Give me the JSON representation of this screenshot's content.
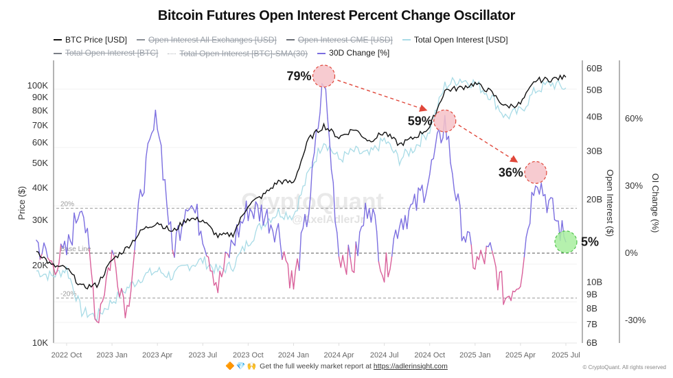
{
  "title": "Bitcoin Futures Open Interest Percent Change Oscillator",
  "legend": [
    {
      "label": "BTC Price [USD]",
      "color": "#111111",
      "active": true,
      "style": "solid"
    },
    {
      "label": "Open Interest All Exchanges [USD]",
      "color": "#8a8f96",
      "active": false,
      "style": "solid"
    },
    {
      "label": "Open Interest CME [USD]",
      "color": "#6a6f76",
      "active": false,
      "style": "solid"
    },
    {
      "label": "Total Open Interest [USD]",
      "color": "#a8dbe6",
      "active": true,
      "style": "solid"
    },
    {
      "label": "Total Open Interest [BTC]",
      "color": "#7a7f86",
      "active": false,
      "style": "solid"
    },
    {
      "label": "Total Open Interest [BTC]-SMA(30)",
      "color": "#b0b4ba",
      "active": false,
      "style": "dotted"
    },
    {
      "label": "30D Change [%]",
      "color": "#7b6ee0",
      "active": true,
      "style": "solid"
    }
  ],
  "footer": {
    "emojis": [
      "🔶",
      "💎",
      "🙌"
    ],
    "text": "Get the full weekly market report at",
    "link": "https://adlerinsight.com",
    "copyright": "© CryptoQuant. All rights reserved"
  },
  "watermark": {
    "main": "CryptoQuant",
    "sub": "@AxelAdlerJr"
  },
  "colors": {
    "price": "#111111",
    "oi_usd": "#a8dbe6",
    "change_pos": "#7b6ee0",
    "change_neg": "#d9609a",
    "annotation_red_fill": "#f6c2c8",
    "annotation_red_stroke": "#e0473a",
    "annotation_green_fill": "#a8ef9f",
    "annotation_green_stroke": "#4fc24a",
    "arrow": "#e0473a"
  },
  "chart_data": {
    "type": "line",
    "title": "Bitcoin Futures Open Interest Percent Change Oscillator",
    "x_ticks": [
      "2022 Oct",
      "2023 Jan",
      "2023 Apr",
      "2023 Jul",
      "2023 Oct",
      "2024 Jan",
      "2024 Apr",
      "2024 Jul",
      "2024 Oct",
      "2025 Jan",
      "2025 Apr",
      "2025 Jul"
    ],
    "x_range": [
      "2022-08",
      "2025-07"
    ],
    "axes": {
      "price": {
        "label": "Price ($)",
        "scale": "log",
        "range": [
          10000,
          130000
        ],
        "ticks": [
          "10K",
          "20K",
          "30K",
          "40K",
          "50K",
          "60K",
          "70K",
          "80K",
          "90K",
          "100K"
        ],
        "tick_values": [
          10000,
          20000,
          30000,
          40000,
          50000,
          60000,
          70000,
          80000,
          90000,
          100000
        ]
      },
      "open_interest": {
        "label": "Open Interest ($)",
        "scale": "log",
        "range": [
          6000000000.0,
          60000000000.0
        ],
        "ticks": [
          "6B",
          "7B",
          "8B",
          "9B",
          "10B",
          "20B",
          "30B",
          "40B",
          "50B",
          "60B"
        ],
        "tick_values": [
          6000000000.0,
          7000000000.0,
          8000000000.0,
          9000000000.0,
          10000000000.0,
          20000000000.0,
          30000000000.0,
          40000000000.0,
          50000000000.0,
          60000000000.0
        ]
      },
      "oi_change": {
        "label": "OI Change (%)",
        "scale": "linear",
        "range": [
          -45,
          90
        ],
        "ticks": [
          "-30%",
          "0%",
          "30%",
          "60%"
        ],
        "tick_values": [
          -30,
          0,
          30,
          60
        ]
      }
    },
    "reference_lines": [
      {
        "label": "20%",
        "value": 20,
        "axis": "oi_change"
      },
      {
        "label": "Base Line",
        "value": 0,
        "axis": "oi_change"
      },
      {
        "label": "-20%",
        "value": -20,
        "axis": "oi_change"
      }
    ],
    "series": [
      {
        "name": "BTC Price [USD]",
        "axis": "price",
        "x": [
          "2022-08",
          "2022-09",
          "2022-10",
          "2022-11",
          "2022-12",
          "2023-01",
          "2023-02",
          "2023-03",
          "2023-04",
          "2023-05",
          "2023-06",
          "2023-07",
          "2023-08",
          "2023-09",
          "2023-10",
          "2023-11",
          "2023-12",
          "2024-01",
          "2024-02",
          "2024-03",
          "2024-04",
          "2024-05",
          "2024-06",
          "2024-07",
          "2024-08",
          "2024-09",
          "2024-10",
          "2024-11",
          "2024-12",
          "2025-01",
          "2025-02",
          "2025-03",
          "2025-04",
          "2025-05",
          "2025-06",
          "2025-07"
        ],
        "values": [
          23000,
          20000,
          19500,
          16500,
          16800,
          21000,
          23500,
          27500,
          29500,
          27000,
          30500,
          30000,
          26000,
          26500,
          34500,
          37500,
          42500,
          42000,
          62000,
          70000,
          63000,
          68000,
          61000,
          66000,
          59000,
          63000,
          69000,
          96000,
          98000,
          102000,
          95000,
          83000,
          85000,
          105000,
          106000,
          108000
        ]
      },
      {
        "name": "Total Open Interest [USD]",
        "axis": "open_interest",
        "x": [
          "2022-08",
          "2022-09",
          "2022-10",
          "2022-11",
          "2022-12",
          "2023-01",
          "2023-02",
          "2023-03",
          "2023-04",
          "2023-05",
          "2023-06",
          "2023-07",
          "2023-08",
          "2023-09",
          "2023-10",
          "2023-11",
          "2023-12",
          "2024-01",
          "2024-02",
          "2024-03",
          "2024-04",
          "2024-05",
          "2024-06",
          "2024-07",
          "2024-08",
          "2024-09",
          "2024-10",
          "2024-11",
          "2024-12",
          "2025-01",
          "2025-02",
          "2025-03",
          "2025-04",
          "2025-05",
          "2025-06",
          "2025-07"
        ],
        "values": [
          11000,
          10500,
          11200,
          7800,
          7500,
          8500,
          9500,
          10500,
          11000,
          10500,
          11500,
          12000,
          11000,
          11500,
          14000,
          16500,
          18000,
          17500,
          25000,
          33000,
          28000,
          30000,
          29000,
          33000,
          28000,
          31000,
          36000,
          52000,
          55000,
          53000,
          48000,
          40000,
          42000,
          50000,
          53000,
          51000
        ]
      },
      {
        "name": "30D Change [%]",
        "axis": "oi_change",
        "x": [
          "2022-08",
          "2022-09",
          "2022-10",
          "2022-11",
          "2022-12",
          "2023-01",
          "2023-02",
          "2023-03",
          "2023-04",
          "2023-05",
          "2023-06",
          "2023-07",
          "2023-08",
          "2023-09",
          "2023-10",
          "2023-11",
          "2023-12",
          "2024-01",
          "2024-02",
          "2024-03",
          "2024-04",
          "2024-05",
          "2024-06",
          "2024-07",
          "2024-08",
          "2024-09",
          "2024-10",
          "2024-11",
          "2024-12",
          "2025-01",
          "2025-02",
          "2025-03",
          "2025-04",
          "2025-05",
          "2025-06",
          "2025-07"
        ],
        "values": [
          5,
          -5,
          0,
          25,
          -30,
          0,
          -25,
          30,
          62,
          0,
          25,
          10,
          -15,
          5,
          20,
          18,
          10,
          -15,
          20,
          79,
          0,
          -5,
          25,
          -10,
          15,
          20,
          35,
          59,
          15,
          -5,
          0,
          -20,
          -10,
          36,
          20,
          5
        ]
      }
    ],
    "annotations": [
      {
        "label": "79%",
        "date": "2024-03",
        "value": 79,
        "highlight": "red"
      },
      {
        "label": "59%",
        "date": "2024-11",
        "value": 59,
        "highlight": "red"
      },
      {
        "label": "36%",
        "date": "2025-05",
        "value": 36,
        "highlight": "red"
      },
      {
        "label": "5%",
        "date": "2025-07",
        "value": 5,
        "highlight": "green"
      }
    ],
    "grid": true,
    "legend_position": "top"
  }
}
